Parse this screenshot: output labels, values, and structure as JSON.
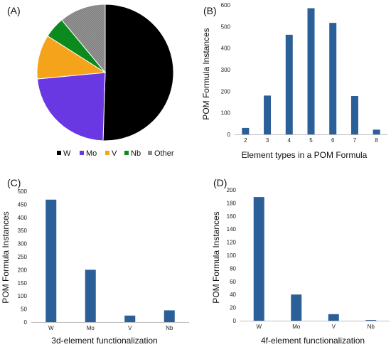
{
  "chart_data": [
    {
      "panel": "(A)",
      "type": "pie",
      "slices": [
        {
          "label": "W",
          "value": 50.5,
          "color": "#000000"
        },
        {
          "label": "Mo",
          "value": 23.0,
          "color": "#6a38e2"
        },
        {
          "label": "V",
          "value": 10.5,
          "color": "#f5a31a"
        },
        {
          "label": "Nb",
          "value": 5.0,
          "color": "#0b8a1e"
        },
        {
          "label": "Other",
          "value": 11.0,
          "color": "#8c8c8c"
        }
      ],
      "legend": [
        "W",
        "Mo",
        "V",
        "Nb",
        "Other"
      ],
      "legend_position": "bottom"
    },
    {
      "panel": "(B)",
      "type": "bar",
      "categories": [
        "2",
        "3",
        "4",
        "5",
        "6",
        "7",
        "8"
      ],
      "values": [
        30,
        180,
        462,
        585,
        517,
        178,
        22
      ],
      "xlabel": "Element types in a POM Formula",
      "ylabel": "POM Formula Instances",
      "ylim": [
        0,
        600
      ],
      "yticks": [
        0,
        100,
        200,
        300,
        400,
        500,
        600
      ],
      "color": "#2b5f98"
    },
    {
      "panel": "(C)",
      "type": "bar",
      "categories": [
        "W",
        "Mo",
        "V",
        "Nb"
      ],
      "values": [
        468,
        200,
        25,
        45
      ],
      "xlabel": "3d-element functionalization",
      "ylabel": "POM Formula Instances",
      "ylim": [
        0,
        500
      ],
      "yticks": [
        0,
        50,
        100,
        150,
        200,
        250,
        300,
        350,
        400,
        450,
        500
      ],
      "color": "#2b5f98"
    },
    {
      "panel": "(D)",
      "type": "bar",
      "categories": [
        "W",
        "Mo",
        "V",
        "Nb"
      ],
      "values": [
        189,
        40,
        10,
        1
      ],
      "xlabel": "4f-element functionalization",
      "ylabel": "POM Formula Instances",
      "ylim": [
        0,
        200
      ],
      "yticks": [
        0,
        20,
        40,
        60,
        80,
        100,
        120,
        140,
        160,
        180,
        200
      ],
      "color": "#2b5f98"
    }
  ]
}
